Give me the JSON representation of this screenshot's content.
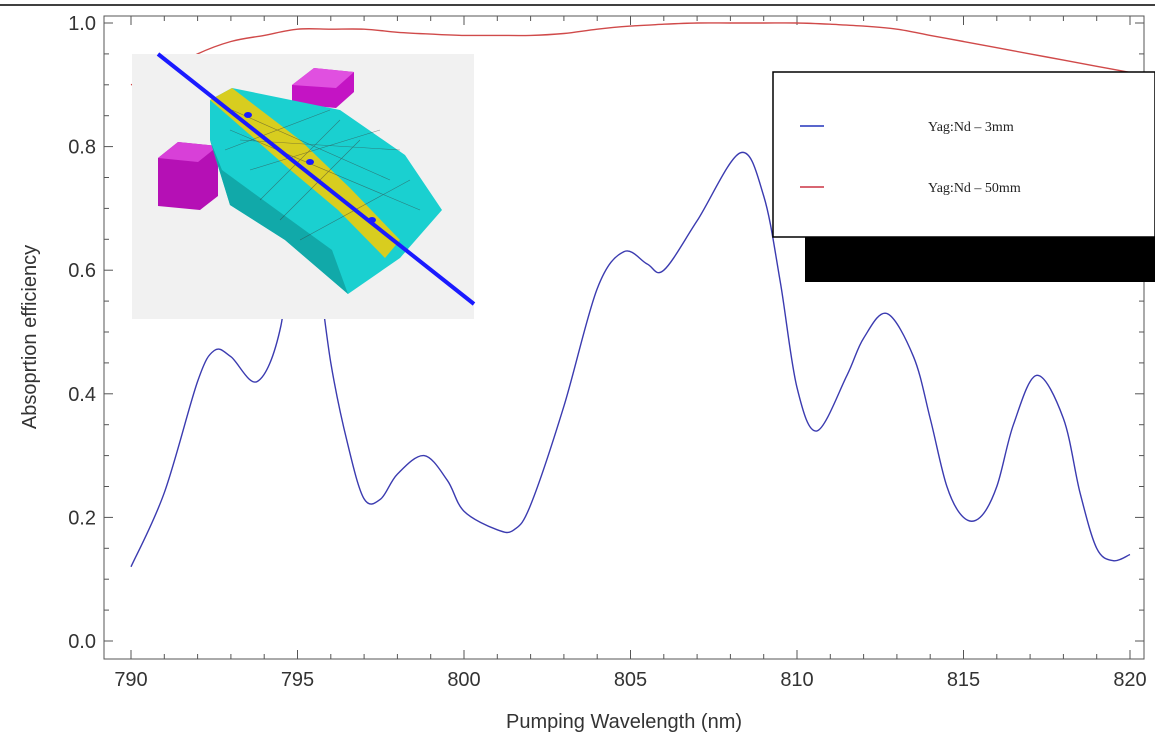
{
  "chart_data": {
    "type": "line",
    "title": "",
    "xlabel": "Pumping Wavelength (nm)",
    "ylabel": "Absoprtion efficiency",
    "xlim": [
      790,
      820
    ],
    "ylim": [
      0,
      1.0
    ],
    "xticks": [
      790,
      795,
      800,
      805,
      810,
      815,
      820
    ],
    "xtick_labels": [
      "790",
      "795",
      "800",
      "805",
      "810",
      "815",
      "820"
    ],
    "yticks": [
      0.0,
      0.2,
      0.4,
      0.6,
      0.8,
      1.0
    ],
    "ytick_labels": [
      "0.0",
      "0.2",
      "0.4",
      "0.6",
      "0.8",
      "1.0"
    ],
    "grid": false,
    "legend_position": "top-right",
    "series": [
      {
        "name": "Yag:Nd – 3mm",
        "color": "#3b3bb0",
        "x": [
          790,
          791,
          792,
          792.5,
          793,
          793.8,
          794.5,
          795,
          795.5,
          796,
          796.5,
          797,
          797.5,
          798,
          798.8,
          799.5,
          800,
          801,
          801.5,
          802,
          803,
          804,
          804.8,
          805.5,
          806,
          807,
          808.3,
          809,
          809.5,
          810,
          810.6,
          811.5,
          812,
          812.7,
          813.5,
          814,
          814.5,
          815,
          815.5,
          816,
          816.5,
          817.2,
          818,
          818.5,
          819,
          819.5,
          820
        ],
        "y": [
          0.12,
          0.24,
          0.42,
          0.47,
          0.46,
          0.42,
          0.51,
          0.72,
          0.64,
          0.45,
          0.32,
          0.23,
          0.23,
          0.27,
          0.3,
          0.26,
          0.21,
          0.18,
          0.18,
          0.22,
          0.38,
          0.57,
          0.63,
          0.61,
          0.6,
          0.68,
          0.79,
          0.72,
          0.58,
          0.41,
          0.34,
          0.43,
          0.49,
          0.53,
          0.46,
          0.36,
          0.25,
          0.2,
          0.2,
          0.25,
          0.35,
          0.43,
          0.36,
          0.24,
          0.15,
          0.13,
          0.14
        ]
      },
      {
        "name": "Yag:Nd – 50mm",
        "color": "#d04a4a",
        "x": [
          790,
          791,
          792,
          793,
          794,
          795,
          796,
          797,
          798,
          799,
          800,
          801,
          802,
          803,
          804,
          805,
          806,
          807,
          808,
          809,
          810,
          811,
          812,
          813,
          814,
          815,
          816,
          817,
          818,
          819,
          820
        ],
        "y": [
          0.9,
          0.92,
          0.95,
          0.97,
          0.98,
          0.99,
          0.99,
          0.99,
          0.985,
          0.982,
          0.98,
          0.98,
          0.98,
          0.983,
          0.99,
          0.995,
          0.998,
          1.0,
          1.0,
          1.0,
          1.0,
          0.998,
          0.995,
          0.99,
          0.98,
          0.97,
          0.96,
          0.95,
          0.94,
          0.93,
          0.92
        ]
      }
    ]
  },
  "legend": {
    "items": [
      {
        "label": "Yag:Nd – 3mm",
        "color": "#2233bb"
      },
      {
        "label": "Yag:Nd – 50mm",
        "color": "#cc3344"
      }
    ]
  },
  "inset": {
    "description_icon": "3d-laser-crystal-illustration-icon",
    "colors": {
      "background": "#f1f1f1",
      "crystal": "#19d0d0",
      "slab": "#d7cc1e",
      "beam": "#1a1aff",
      "pump": "#c010c0"
    }
  },
  "redaction_color": "#000000"
}
